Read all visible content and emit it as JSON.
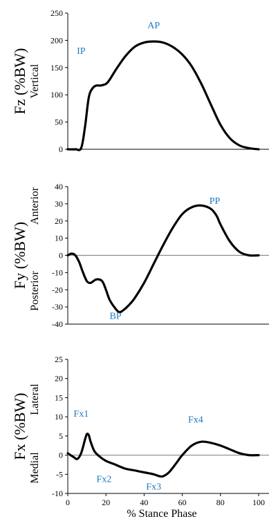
{
  "colors": {
    "line": "#000000",
    "zero_line": "#8a8a8a",
    "annotation": "#1f78c1"
  },
  "x_axis_label": "% Stance Phase",
  "chart_data": [
    {
      "type": "line",
      "ylabel": "Fz (%BW)",
      "ylabel_sub": [
        "Vertical"
      ],
      "ylim": [
        0,
        250
      ],
      "yticks": [
        0,
        50,
        100,
        150,
        200,
        250
      ],
      "xlim": [
        0,
        100
      ],
      "zero_line": false,
      "series": [
        {
          "x": [
            0,
            4,
            7,
            9,
            11,
            13,
            15,
            17,
            20,
            22,
            25,
            30,
            35,
            40,
            45,
            50,
            55,
            60,
            65,
            70,
            75,
            80,
            85,
            90,
            95,
            100
          ],
          "y": [
            0,
            0,
            2,
            40,
            95,
            112,
            117,
            117,
            120,
            128,
            145,
            170,
            188,
            196,
            198,
            196,
            188,
            174,
            152,
            120,
            82,
            45,
            20,
            7,
            2,
            0
          ]
        }
      ],
      "annotations": [
        {
          "text": "IP",
          "x": 7,
          "y": 175
        },
        {
          "text": "AP",
          "x": 45,
          "y": 222
        }
      ]
    },
    {
      "type": "line",
      "ylabel": "Fy (%BW)",
      "ylabel_sub": [
        "Posterior",
        "Anterior"
      ],
      "ylim": [
        -40,
        40
      ],
      "yticks": [
        -40,
        -30,
        -20,
        -10,
        0,
        10,
        20,
        30,
        40
      ],
      "xlim": [
        0,
        100
      ],
      "zero_line": true,
      "series": [
        {
          "x": [
            0,
            2,
            4,
            6,
            8,
            10,
            12,
            15,
            18,
            20,
            22,
            25,
            27,
            29,
            32,
            35,
            40,
            45,
            50,
            55,
            60,
            65,
            70,
            75,
            78,
            80,
            85,
            90,
            95,
            100
          ],
          "y": [
            0,
            1,
            0,
            -4,
            -10,
            -15,
            -16,
            -14,
            -15,
            -20,
            -26,
            -31,
            -33,
            -32,
            -29,
            -25,
            -16,
            -5,
            6,
            16,
            24,
            28,
            29,
            27,
            23,
            18,
            8,
            2,
            0,
            0
          ]
        }
      ],
      "annotations": [
        {
          "text": "BP",
          "x": 25,
          "y": -37
        },
        {
          "text": "PP",
          "x": 77,
          "y": 30
        }
      ]
    },
    {
      "type": "line",
      "ylabel": "Fx (%BW)",
      "ylabel_sub": [
        "Medial",
        "Lateral"
      ],
      "ylim": [
        -10,
        25
      ],
      "yticks": [
        -10,
        -5,
        0,
        5,
        10,
        15,
        20,
        25
      ],
      "xlim": [
        0,
        100
      ],
      "xticks": [
        0,
        20,
        40,
        60,
        80,
        100
      ],
      "zero_line": true,
      "series": [
        {
          "x": [
            0,
            3,
            5,
            7,
            9,
            10,
            11,
            12,
            14,
            17,
            20,
            25,
            30,
            35,
            40,
            45,
            48,
            50,
            53,
            57,
            60,
            65,
            70,
            75,
            80,
            85,
            90,
            95,
            100
          ],
          "y": [
            0.5,
            -0.5,
            -1,
            0.5,
            4,
            5.5,
            5.2,
            3.5,
            1,
            -0.5,
            -1.5,
            -2.5,
            -3.5,
            -4,
            -4.5,
            -5,
            -5.5,
            -5.5,
            -4.5,
            -2,
            0,
            2.5,
            3.5,
            3.2,
            2.5,
            1.5,
            0.5,
            0,
            0
          ]
        }
      ],
      "annotations": [
        {
          "text": "Fx1",
          "x": 7,
          "y": 10
        },
        {
          "text": "Fx2",
          "x": 19,
          "y": -7
        },
        {
          "text": "Fx3",
          "x": 45,
          "y": -9
        },
        {
          "text": "Fx4",
          "x": 67,
          "y": 8.5
        }
      ]
    }
  ]
}
